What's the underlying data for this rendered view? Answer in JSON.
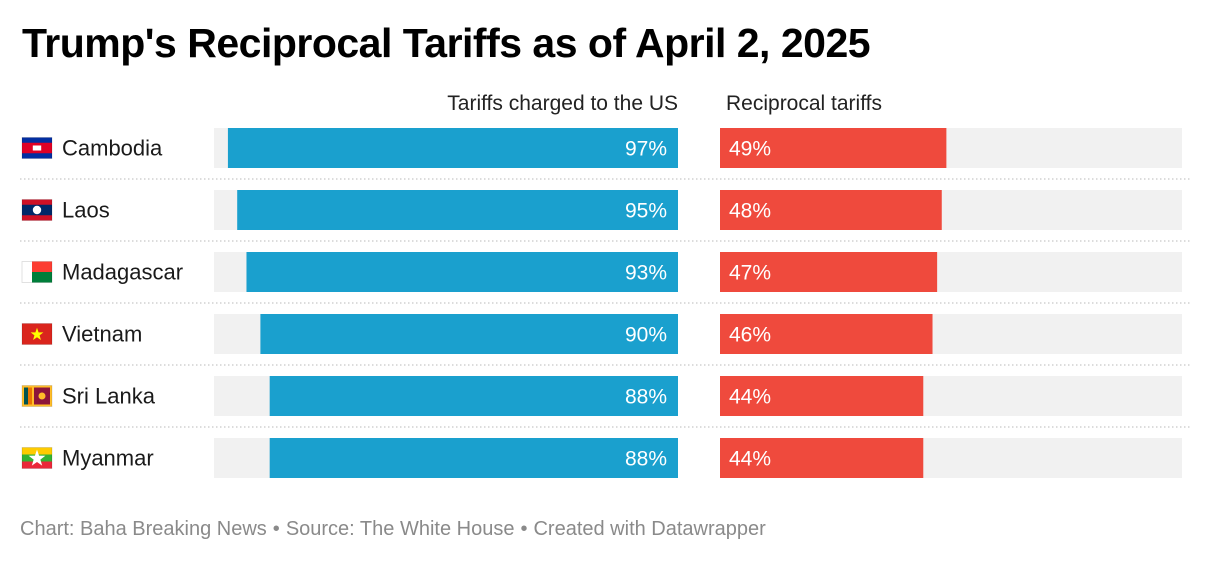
{
  "title": "Trump's Reciprocal Tariffs as of April 2, 2025",
  "colors": {
    "left_bar": "#1aa0ce",
    "right_bar": "#ef4a3d",
    "track": "#f1f1f1",
    "separator": "#c8c8c8"
  },
  "chart_data": {
    "type": "bar",
    "columns": [
      "Tariffs charged to the US",
      "Reciprocal tariffs"
    ],
    "categories": [
      "Cambodia",
      "Laos",
      "Madagascar",
      "Vietnam",
      "Sri Lanka",
      "Myanmar"
    ],
    "flags": [
      "cambodia-flag-icon",
      "laos-flag-icon",
      "madagascar-flag-icon",
      "vietnam-flag-icon",
      "sri-lanka-flag-icon",
      "myanmar-flag-icon"
    ],
    "series": [
      {
        "name": "Tariffs charged to the US",
        "values": [
          97,
          95,
          93,
          90,
          88,
          88
        ]
      },
      {
        "name": "Reciprocal tariffs",
        "values": [
          49,
          48,
          47,
          46,
          44,
          44
        ]
      }
    ],
    "value_labels": [
      [
        "97%",
        "95%",
        "93%",
        "90%",
        "88%",
        "88%"
      ],
      [
        "49%",
        "48%",
        "47%",
        "46%",
        "44%",
        "44%"
      ]
    ],
    "xlim": [
      0,
      100
    ],
    "unit": "%"
  },
  "footer": {
    "chart": "Chart: Baha Breaking News",
    "source": "Source: The White House",
    "created": "Created with Datawrapper",
    "separator": "•"
  }
}
